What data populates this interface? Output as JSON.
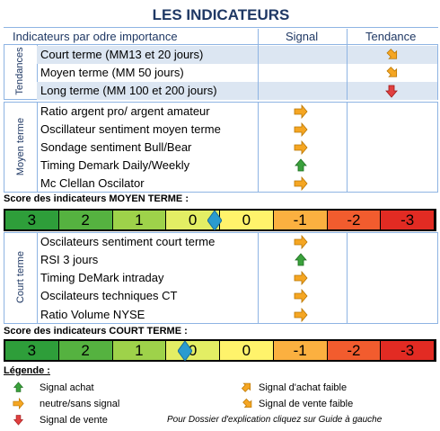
{
  "title": "LES INDICATEURS",
  "header": {
    "main": "Indicateurs par odre importance",
    "signal": "Signal",
    "tendance": "Tendance"
  },
  "tendances": {
    "side_label": "Tendances",
    "rows": [
      {
        "label": "Court terme (MM13 et 20 jours)",
        "tendance": "achat-faible"
      },
      {
        "label": "Moyen terme (MM 50 jours)",
        "tendance": "vente-faible"
      },
      {
        "label": "Long terme (MM 100 et 200 jours)",
        "tendance": "vente"
      }
    ]
  },
  "moyen_terme": {
    "side_label": "Moyen terme",
    "rows": [
      {
        "label": "Ratio argent pro/ argent amateur",
        "signal": "neutre"
      },
      {
        "label": "Oscillateur sentiment moyen terme",
        "signal": "neutre"
      },
      {
        "label": "Sondage sentiment Bull/Bear",
        "signal": "neutre"
      },
      {
        "label": "Timing Demark Daily/Weekly",
        "signal": "achat"
      },
      {
        "label": "Mc Clellan Oscilator",
        "signal": "neutre"
      }
    ],
    "score_label": "Score des indicateurs MOYEN TERME :",
    "score_position": 3.9
  },
  "court_terme": {
    "side_label": "Court terme",
    "rows": [
      {
        "label": "Oscilateurs sentiment court terme",
        "signal": "neutre"
      },
      {
        "label": "RSI 3 jours",
        "signal": "achat"
      },
      {
        "label": "Timing DeMark intraday",
        "signal": "neutre"
      },
      {
        "label": "Oscilateurs techniques CT",
        "signal": "neutre"
      },
      {
        "label": "Ratio Volume NYSE",
        "signal": "neutre"
      }
    ],
    "score_label": "Score des indicateurs COURT TERME :",
    "score_position": 3.35
  },
  "scale": {
    "values": [
      "3",
      "2",
      "1",
      "0",
      "0",
      "-1",
      "-2",
      "-3"
    ],
    "colors": [
      "#2e9e3a",
      "#55b240",
      "#9ed24a",
      "#e3ee64",
      "#fff36b",
      "#fbb040",
      "#f25c2e",
      "#e22b23"
    ]
  },
  "legend": {
    "title": "Légende :",
    "achat": "Signal achat",
    "neutre": "neutre/sans signal",
    "vente": "Signal de vente",
    "achat_faible": "Signal d'achat faible",
    "vente_faible": "Signal de vente faible",
    "note": "Pour Dossier d'explication cliquez sur Guide à gauche"
  },
  "colors": {
    "arrow_orange": "#f5a623",
    "arrow_green": "#3aa13c",
    "arrow_red": "#e04040",
    "marker": "#2a9bd0"
  }
}
